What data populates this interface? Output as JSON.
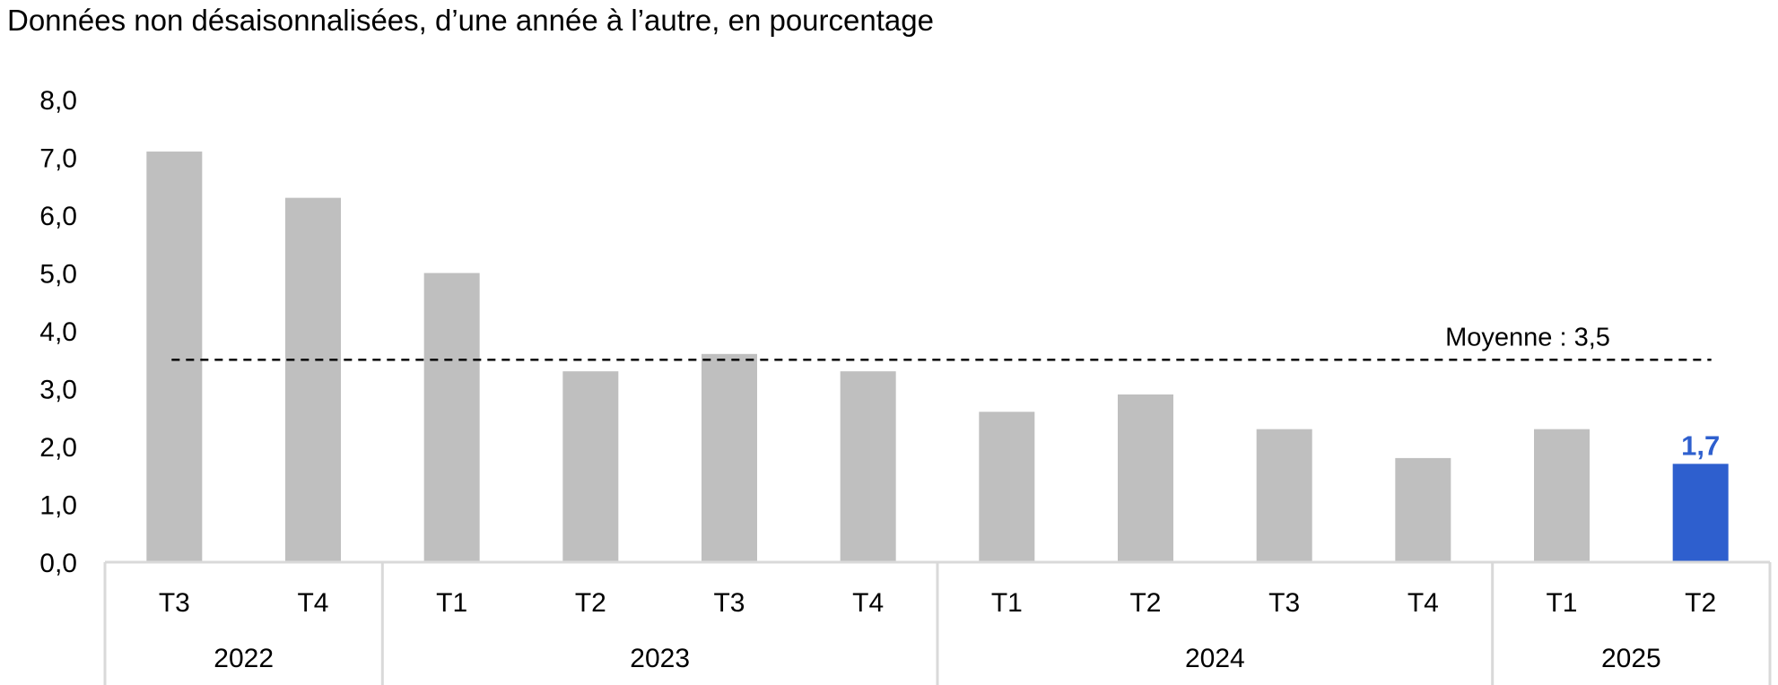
{
  "subtitle": "Données non désaisonnalisées, d’une année à l’autre, en pourcentage",
  "colors": {
    "bar": "#bfbfbf",
    "highlight": "#2e5fce",
    "average_line": "#000000",
    "axis": "#d9d9d9"
  },
  "chart_data": {
    "type": "bar",
    "categories": [
      "T3",
      "T4",
      "T1",
      "T2",
      "T3",
      "T4",
      "T1",
      "T2",
      "T3",
      "T4",
      "T1",
      "T2"
    ],
    "groups": [
      {
        "label": "2022",
        "count": 2
      },
      {
        "label": "2023",
        "count": 4
      },
      {
        "label": "2024",
        "count": 4
      },
      {
        "label": "2025",
        "count": 2
      }
    ],
    "values": [
      7.1,
      6.3,
      5.0,
      3.3,
      3.6,
      3.3,
      2.6,
      2.9,
      2.3,
      1.8,
      2.3,
      1.7
    ],
    "highlight_index": 11,
    "data_labels": [
      {
        "index": 11,
        "text": "1,7"
      }
    ],
    "yticks": [
      "0,0",
      "1,0",
      "2,0",
      "3,0",
      "4,0",
      "5,0",
      "6,0",
      "7,0",
      "8,0"
    ],
    "ylim": [
      0,
      8
    ],
    "average": {
      "value": 3.5,
      "label": "Moyenne : 3,5"
    },
    "title": "",
    "xlabel": "",
    "ylabel": "",
    "grid": false
  }
}
